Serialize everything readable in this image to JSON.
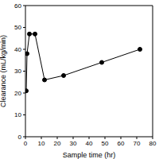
{
  "chart_data": {
    "type": "line",
    "x": [
      0.5,
      1,
      2.5,
      6,
      12,
      24,
      48,
      72
    ],
    "values": [
      21,
      38,
      47,
      47,
      26,
      28,
      34,
      40
    ],
    "color": "#000000",
    "marker": "circle",
    "line_style": "solid",
    "xlabel": "Sample time (hr)",
    "ylabel": "Clearance (mL/kg/min)",
    "xlim": [
      0,
      80
    ],
    "xticks": [
      0,
      10,
      20,
      30,
      40,
      50,
      60,
      70,
      80
    ],
    "ylim": [
      0,
      60
    ],
    "yticks": [
      0,
      10,
      20,
      30,
      40,
      50,
      60
    ],
    "grid": false
  }
}
